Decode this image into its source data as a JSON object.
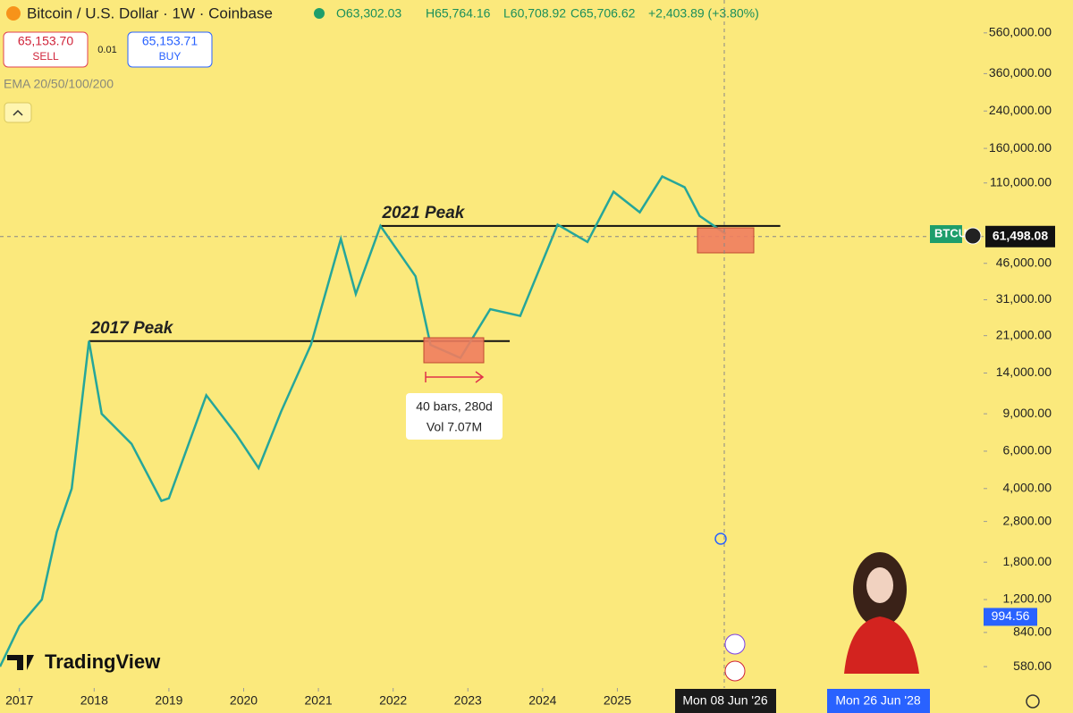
{
  "header": {
    "title": "Bitcoin / U.S. Dollar · 1W · Coinbase",
    "open": "O63,302.03",
    "high": "H65,764.16",
    "low": "L60,708.92",
    "close": "C65,706.62",
    "change": "+2,403.89 (+3.80%)"
  },
  "trade": {
    "sell_price": "65,153.70",
    "sell": "SELL",
    "spread": "0.01",
    "buy_price": "65,153.71",
    "buy": "BUY"
  },
  "indicator": "EMA 20/50/100/200",
  "tooltip": {
    "line1": "40 bars, 280d",
    "line2": "Vol 7.07M"
  },
  "price_tags": {
    "symbol": "BTCU",
    "last": {
      "value": 61498.08,
      "label": "61,498.08"
    },
    "cursor": {
      "value": 994.56,
      "label": "994.56"
    }
  },
  "date_tags": [
    "Mon 08 Jun '26",
    "Mon 26 Jun '28"
  ],
  "logo": "TradingView",
  "chart_data": {
    "type": "line",
    "log_scale": true,
    "color": "#26a69a",
    "x": [
      2016.74,
      2017.0,
      2017.3,
      2017.5,
      2017.7,
      2017.93,
      2018.1,
      2018.5,
      2018.9,
      2019.0,
      2019.5,
      2019.9,
      2020.2,
      2020.5,
      2020.9,
      2021.3,
      2021.5,
      2021.83,
      2022.3,
      2022.5,
      2022.9,
      2023.3,
      2023.7,
      2024.2,
      2024.6,
      2024.95,
      2025.3,
      2025.6,
      2025.9,
      2026.1,
      2026.45
    ],
    "values": [
      580,
      900,
      1200,
      2500,
      4000,
      19800,
      9000,
      6500,
      3500,
      3600,
      11000,
      7200,
      5000,
      9200,
      19000,
      60000,
      33000,
      69000,
      40000,
      19000,
      16500,
      28000,
      26000,
      70000,
      58000,
      100000,
      80000,
      118000,
      105000,
      77000,
      63302
    ],
    "xlim": [
      2016.74,
      2029.9
    ],
    "ylim": [
      460,
      800000
    ],
    "xticks": [
      2017,
      2018,
      2019,
      2020,
      2021,
      2022,
      2023,
      2024,
      2025
    ],
    "yticks": [
      {
        "value": 560000,
        "label": "560,000.00"
      },
      {
        "value": 360000,
        "label": "360,000.00"
      },
      {
        "value": 240000,
        "label": "240,000.00"
      },
      {
        "value": 160000,
        "label": "160,000.00"
      },
      {
        "value": 110000,
        "label": "110,000.00"
      },
      {
        "value": 46000,
        "label": "46,000.00"
      },
      {
        "value": 31000,
        "label": "31,000.00"
      },
      {
        "value": 21000,
        "label": "21,000.00"
      },
      {
        "value": 14000,
        "label": "14,000.00"
      },
      {
        "value": 9000,
        "label": "9,000.00"
      },
      {
        "value": 6000,
        "label": "6,000.00"
      },
      {
        "value": 4000,
        "label": "4,000.00"
      },
      {
        "value": 2800,
        "label": "2,800.00"
      },
      {
        "value": 1800,
        "label": "1,800.00"
      },
      {
        "value": 1200,
        "label": "1,200.00"
      },
      {
        "value": 840,
        "label": "840.00"
      },
      {
        "value": 580,
        "label": "580.00"
      }
    ],
    "annotations": [
      {
        "text": "2017 Peak",
        "value": 19800,
        "x": [
          2017.93,
          2023.56
        ]
      },
      {
        "text": "2021 Peak",
        "value": 69000,
        "x": [
          2021.83,
          2027.18
        ]
      }
    ]
  }
}
